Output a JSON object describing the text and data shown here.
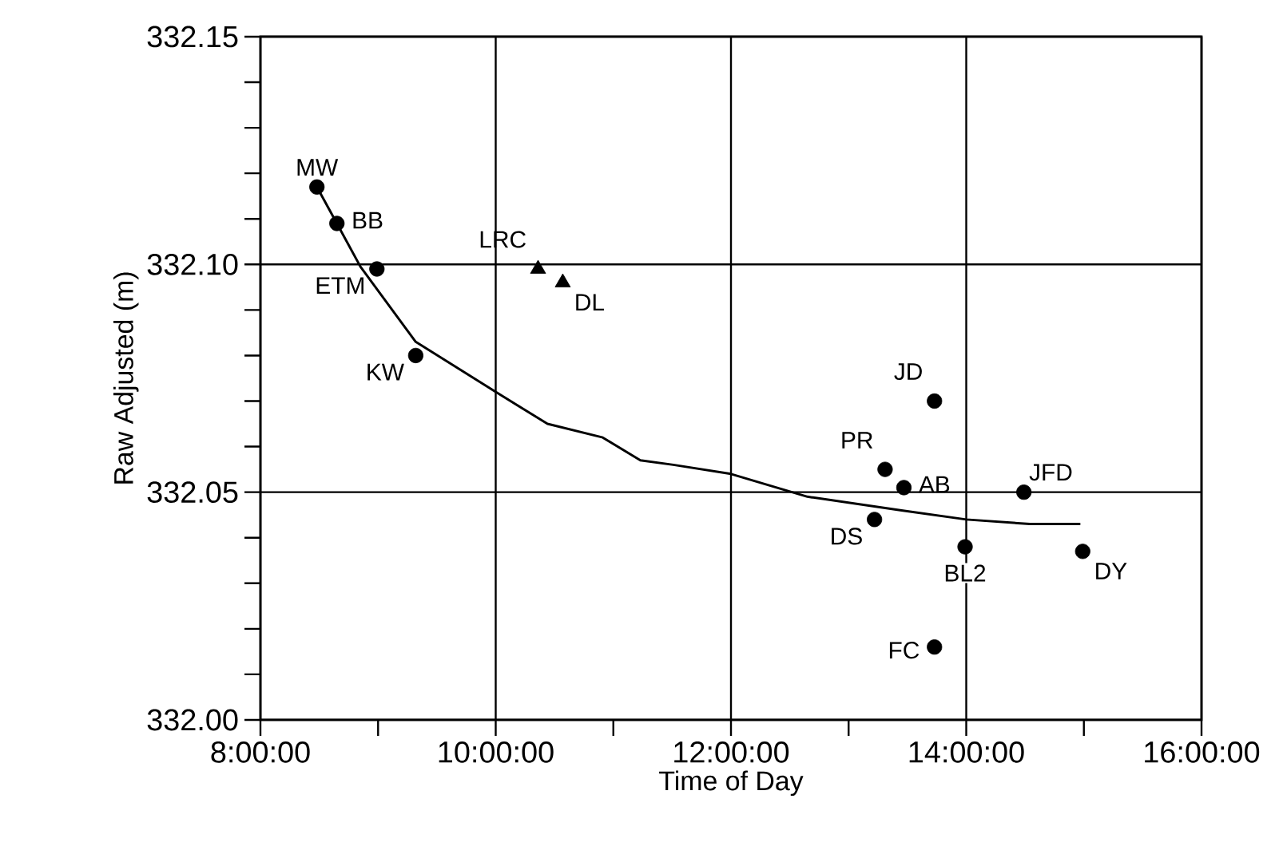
{
  "chart_data": {
    "type": "scatter",
    "xlabel": "Time of Day",
    "ylabel": "Raw Adjusted (m)",
    "xlim": [
      8,
      16
    ],
    "ylim": [
      332.0,
      332.15
    ],
    "xticks": [
      {
        "value": 8,
        "label": "8:00:00"
      },
      {
        "value": 9,
        "label": null
      },
      {
        "value": 10,
        "label": "10:00:00"
      },
      {
        "value": 11,
        "label": null
      },
      {
        "value": 12,
        "label": "12:00:00"
      },
      {
        "value": 13,
        "label": null
      },
      {
        "value": 14,
        "label": "14:00:00"
      },
      {
        "value": 15,
        "label": null
      },
      {
        "value": 16,
        "label": "16:00:00"
      }
    ],
    "yticks": [
      {
        "value": 332.0,
        "label": "332.00"
      },
      {
        "value": 332.01,
        "label": null
      },
      {
        "value": 332.02,
        "label": null
      },
      {
        "value": 332.03,
        "label": null
      },
      {
        "value": 332.04,
        "label": null
      },
      {
        "value": 332.05,
        "label": "332.05"
      },
      {
        "value": 332.06,
        "label": null
      },
      {
        "value": 332.07,
        "label": null
      },
      {
        "value": 332.08,
        "label": null
      },
      {
        "value": 332.09,
        "label": null
      },
      {
        "value": 332.1,
        "label": "332.10"
      },
      {
        "value": 332.11,
        "label": null
      },
      {
        "value": 332.12,
        "label": null
      },
      {
        "value": 332.13,
        "label": null
      },
      {
        "value": 332.14,
        "label": null
      },
      {
        "value": 332.15,
        "label": "332.15"
      }
    ],
    "grid": true,
    "series": [
      {
        "marker": "circle",
        "color": "#000000",
        "x": [
          8.48,
          8.65,
          8.99,
          9.32,
          13.73,
          13.31,
          13.47,
          14.49,
          13.22,
          13.99,
          14.99,
          13.73
        ],
        "values": [
          332.117,
          332.109,
          332.099,
          332.08,
          332.07,
          332.055,
          332.051,
          332.05,
          332.044,
          332.038,
          332.037,
          332.016
        ]
      },
      {
        "marker": "triangle",
        "color": "#000000",
        "x": [
          10.36,
          10.57
        ],
        "values": [
          332.099,
          332.096
        ]
      },
      {
        "type": "line",
        "marker": "none",
        "line_style": "solid",
        "color": "#000000",
        "x": [
          8.48,
          8.65,
          8.85,
          9.32,
          10.0,
          10.44,
          10.91,
          11.23,
          11.51,
          12.0,
          12.65,
          13.45,
          14.0,
          14.54,
          14.97
        ],
        "values": [
          332.117,
          332.109,
          332.0995,
          332.083,
          332.072,
          332.065,
          332.062,
          332.057,
          332.056,
          332.054,
          332.049,
          332.046,
          332.044,
          332.043,
          332.043
        ]
      }
    ],
    "annotations": [
      {
        "text": "MW",
        "x": 8.48,
        "y": 332.117
      },
      {
        "text": "BB",
        "x": 8.65,
        "y": 332.109
      },
      {
        "text": "ETM",
        "x": 8.99,
        "y": 332.099
      },
      {
        "text": "KW",
        "x": 9.32,
        "y": 332.08
      },
      {
        "text": "LRC",
        "x": 10.36,
        "y": 332.099
      },
      {
        "text": "DL",
        "x": 10.57,
        "y": 332.096
      },
      {
        "text": "JD",
        "x": 13.73,
        "y": 332.07
      },
      {
        "text": "PR",
        "x": 13.31,
        "y": 332.055
      },
      {
        "text": "AB",
        "x": 13.47,
        "y": 332.051
      },
      {
        "text": "JFD",
        "x": 14.49,
        "y": 332.05
      },
      {
        "text": "DS",
        "x": 13.22,
        "y": 332.044
      },
      {
        "text": "BL2",
        "x": 13.99,
        "y": 332.038
      },
      {
        "text": "DY",
        "x": 14.99,
        "y": 332.037
      },
      {
        "text": "FC",
        "x": 13.73,
        "y": 332.016
      }
    ]
  }
}
